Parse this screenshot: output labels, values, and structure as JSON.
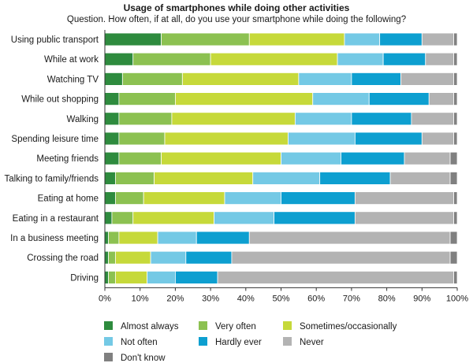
{
  "chart_data": {
    "type": "bar",
    "orientation": "horizontal",
    "stacked": true,
    "title": "Usage of smartphones while doing other activities",
    "subtitle": "Question. How often, if at all, do you use your smartphone while doing the following?",
    "xlabel": "",
    "ylabel": "",
    "xlim": [
      0,
      100
    ],
    "x_ticks": [
      "0%",
      "10%",
      "20%",
      "30%",
      "40%",
      "50%",
      "60%",
      "70%",
      "80%",
      "90%",
      "100%"
    ],
    "grid": false,
    "legend_position": "bottom",
    "categories": [
      "Using public transport",
      "While at work",
      "Watching TV",
      "While out shopping",
      "Walking",
      "Spending leisure time",
      "Meeting friends",
      "Talking to family/friends",
      "Eating at home",
      "Eating in a restaurant",
      "In a business meeting",
      "Crossing the road",
      "Driving"
    ],
    "series": [
      {
        "name": "Almost always",
        "color": "#2e8b3e",
        "values": [
          16,
          8,
          5,
          4,
          4,
          4,
          4,
          3,
          3,
          2,
          1,
          1,
          1
        ]
      },
      {
        "name": "Very often",
        "color": "#8cc151",
        "values": [
          25,
          22,
          17,
          16,
          15,
          13,
          12,
          11,
          8,
          6,
          3,
          2,
          2
        ]
      },
      {
        "name": "Sometimes/occasionally",
        "color": "#c6d93a",
        "values": [
          27,
          36,
          33,
          39,
          35,
          35,
          34,
          28,
          23,
          23,
          11,
          10,
          9
        ]
      },
      {
        "name": "Not often",
        "color": "#74c9e5",
        "values": [
          10,
          13,
          15,
          16,
          16,
          19,
          17,
          19,
          16,
          17,
          11,
          10,
          8
        ]
      },
      {
        "name": "Hardly ever",
        "color": "#0d9fd0",
        "values": [
          12,
          12,
          14,
          17,
          17,
          19,
          18,
          20,
          21,
          23,
          15,
          13,
          12
        ]
      },
      {
        "name": "Never",
        "color": "#b3b3b3",
        "values": [
          9,
          8,
          15,
          7,
          12,
          9,
          13,
          17,
          28,
          28,
          57,
          62,
          67
        ]
      },
      {
        "name": "Don't know",
        "color": "#808080",
        "values": [
          1,
          1,
          1,
          1,
          1,
          1,
          2,
          2,
          1,
          1,
          2,
          2,
          1
        ]
      }
    ]
  }
}
